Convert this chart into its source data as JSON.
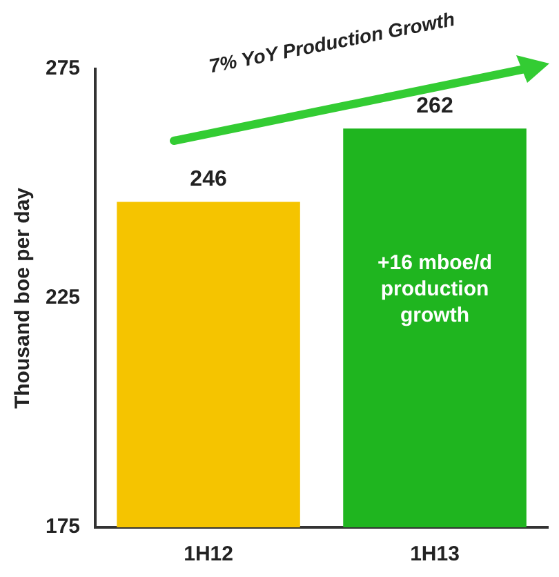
{
  "chart_data": {
    "type": "bar",
    "categories": [
      "1H12",
      "1H13"
    ],
    "values": [
      246,
      262
    ],
    "colors": [
      "#f5c400",
      "#1fb51f"
    ],
    "ylabel": "Thousand boe per day",
    "ylim": [
      175,
      275
    ],
    "yticks": [
      175,
      225,
      275
    ],
    "grid": false,
    "legend": false,
    "data_labels": true,
    "annotations": [
      "7% YoY Production Growth",
      "+16 mboe/d production growth"
    ]
  }
}
